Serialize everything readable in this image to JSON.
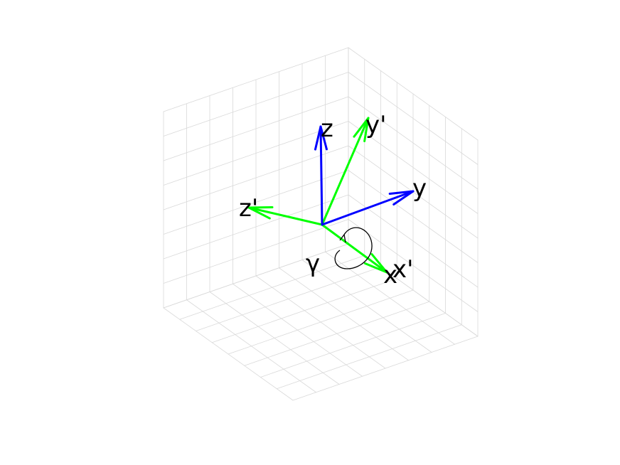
{
  "figure": {
    "axes_original": {
      "color": "#0000ff",
      "labels": {
        "x": "x",
        "y": "y",
        "z": "z"
      }
    },
    "axes_rotated": {
      "color": "#00ff00",
      "labels": {
        "x": "x'",
        "y": "y'",
        "z": "z'"
      }
    },
    "rotation": {
      "angle_label": "γ",
      "about_axis": "x"
    },
    "grid": {
      "shown": true,
      "color": "#d9d9d9"
    }
  }
}
